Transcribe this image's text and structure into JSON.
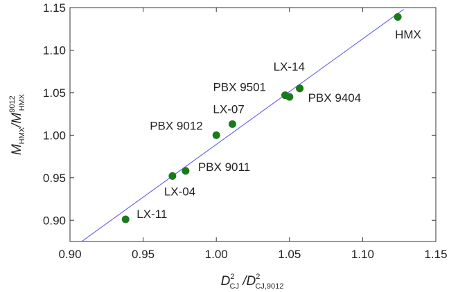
{
  "chart_data": {
    "type": "scatter",
    "xlim": [
      0.9,
      1.15
    ],
    "ylim": [
      0.875,
      1.15
    ],
    "xticks": [
      "0.90",
      "0.95",
      "1.00",
      "1.05",
      "1.10",
      "1.15"
    ],
    "yticks": [
      "0.90",
      "0.95",
      "1.00",
      "1.05",
      "1.10",
      "1.15"
    ],
    "xlabel": {
      "main": "D",
      "sup": "2",
      "sub": "CJ",
      "sep": " /D",
      "sup2": "2",
      "sub2": "CJ,9012"
    },
    "ylabel": {
      "main": "M",
      "sub": "HMX",
      "sep": "/M",
      "sup2": "9012",
      "sub2": "HMX"
    },
    "grid": false,
    "marker_color": "#1a7a1a",
    "line_color": "#6b6bea",
    "fit_line": {
      "x": [
        0.908,
        1.128
      ],
      "y": [
        0.875,
        1.148
      ]
    },
    "points": [
      {
        "label": "LX-11",
        "x": 0.938,
        "y": 0.901
      },
      {
        "label": "LX-04",
        "x": 0.97,
        "y": 0.952
      },
      {
        "label": "PBX 9011",
        "x": 0.979,
        "y": 0.958
      },
      {
        "label": "PBX 9012",
        "x": 1.0,
        "y": 1.0
      },
      {
        "label": "LX-07",
        "x": 1.011,
        "y": 1.013
      },
      {
        "label": "PBX 9501",
        "x": 1.047,
        "y": 1.047
      },
      {
        "label": "",
        "x": 1.05,
        "y": 1.045
      },
      {
        "label": "LX-14",
        "x": 1.057,
        "y": 1.055
      },
      {
        "label": "PBX 9404",
        "x": 1.057,
        "y": 1.055
      },
      {
        "label": "HMX",
        "x": 1.124,
        "y": 1.139
      }
    ]
  }
}
